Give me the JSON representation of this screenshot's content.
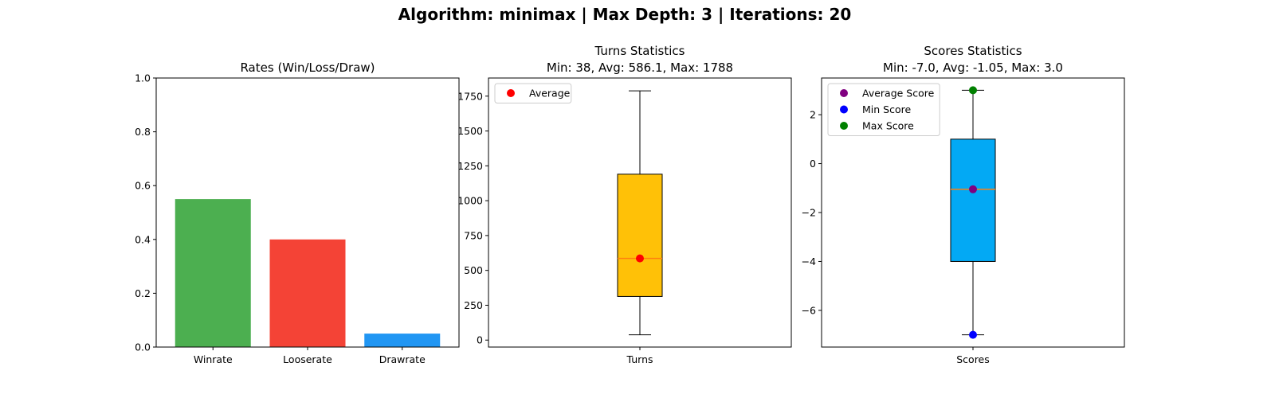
{
  "figure": {
    "suptitle": "Algorithm: minimax | Max Depth: 3 | Iterations: 20"
  },
  "chart_data": [
    {
      "type": "bar",
      "title": "Rates (Win/Loss/Draw)",
      "categories": [
        "Winrate",
        "Looserate",
        "Drawrate"
      ],
      "values": [
        0.55,
        0.4,
        0.05
      ],
      "colors": [
        "#4caf50",
        "#f44336",
        "#2196f3"
      ],
      "ylim": [
        0,
        1.0
      ],
      "yticks": [
        "0.0",
        "0.2",
        "0.4",
        "0.6",
        "0.8",
        "1.0"
      ],
      "ytick_values": [
        0,
        0.2,
        0.4,
        0.6,
        0.8,
        1.0
      ]
    },
    {
      "type": "box",
      "title_lines": [
        "Turns Statistics",
        "Min: 38, Avg: 586.1, Max: 1788"
      ],
      "category": "Turns",
      "box": {
        "whisker_low": 38,
        "q1": 313,
        "median": 586,
        "q3": 1190,
        "whisker_high": 1788
      },
      "box_color": "#ffc107",
      "median_color": "#ff7f0e",
      "markers": [
        {
          "name": "Average",
          "value": 586.1,
          "color": "#ff0000"
        }
      ],
      "legend": [
        "Average"
      ],
      "legend_position": "top-left",
      "ylim": [
        -50,
        1880
      ],
      "yticks": [
        "0",
        "250",
        "500",
        "750",
        "1000",
        "1250",
        "1500",
        "1750"
      ],
      "ytick_values": [
        0,
        250,
        500,
        750,
        1000,
        1250,
        1500,
        1750
      ]
    },
    {
      "type": "box",
      "title_lines": [
        "Scores Statistics",
        "Min: -7.0, Avg: -1.05, Max: 3.0"
      ],
      "category": "Scores",
      "box": {
        "whisker_low": -7.0,
        "q1": -4.0,
        "median": -1.05,
        "q3": 1.0,
        "whisker_high": 3.0
      },
      "box_color": "#03a9f4",
      "median_color": "#ff7f0e",
      "markers": [
        {
          "name": "Average Score",
          "value": -1.05,
          "color": "#800080"
        },
        {
          "name": "Min Score",
          "value": -7.0,
          "color": "#0000ff"
        },
        {
          "name": "Max Score",
          "value": 3.0,
          "color": "#008000"
        }
      ],
      "legend": [
        "Average Score",
        "Min Score",
        "Max Score"
      ],
      "legend_position": "top-left",
      "ylim": [
        -7.5,
        3.5
      ],
      "yticks": [
        "−6",
        "−4",
        "−2",
        "0",
        "2"
      ],
      "ytick_values": [
        -6,
        -4,
        -2,
        0,
        2
      ]
    }
  ]
}
